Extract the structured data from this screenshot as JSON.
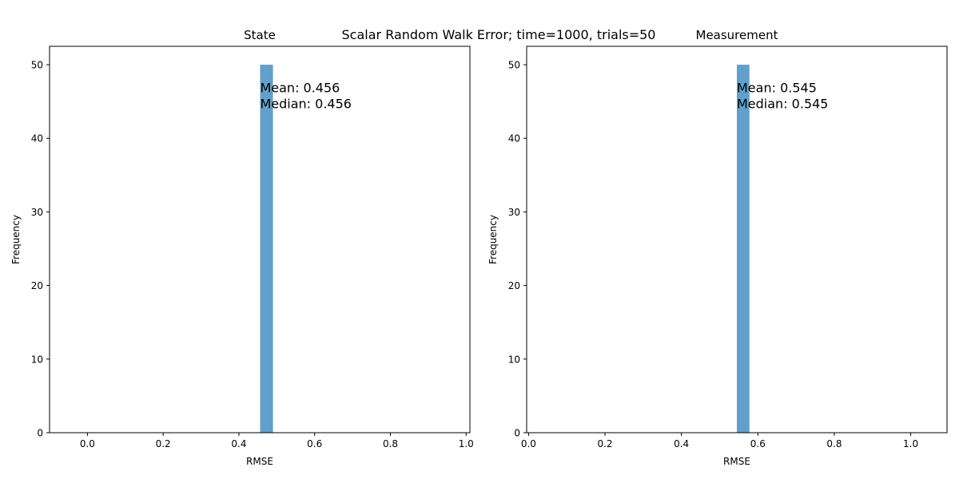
{
  "figure": {
    "suptitle": "Scalar Random Walk Error; time=1000, trials=50"
  },
  "colors": {
    "bar": "#1f77b4",
    "bar_alpha": 0.7,
    "axes": "#000000",
    "background": "#ffffff"
  },
  "chart_data": [
    {
      "type": "bar",
      "title": "State",
      "xlabel": "RMSE",
      "ylabel": "Frequency",
      "xlim": [
        -0.1,
        1.01
      ],
      "ylim": [
        0,
        52.5
      ],
      "xticks": [
        "0.0",
        "0.2",
        "0.4",
        "0.6",
        "0.8",
        "1.0"
      ],
      "xtick_values": [
        0.0,
        0.2,
        0.4,
        0.6,
        0.8,
        1.0
      ],
      "yticks": [
        "0",
        "10",
        "20",
        "30",
        "40",
        "50"
      ],
      "ytick_values": [
        0,
        10,
        20,
        30,
        40,
        50
      ],
      "bins": [
        {
          "start": 0.456,
          "end": 0.49,
          "count": 50
        }
      ],
      "grid": false,
      "annotation": {
        "mean_label": "Mean: 0.456",
        "median_label": "Median: 0.456",
        "anchor_x": 0.456,
        "anchor_y": 47
      }
    },
    {
      "type": "bar",
      "title": "Measurement",
      "xlabel": "RMSE",
      "ylabel": "Frequency",
      "xlim": [
        -0.005,
        1.095
      ],
      "ylim": [
        0,
        52.5
      ],
      "xticks": [
        "0.0",
        "0.2",
        "0.4",
        "0.6",
        "0.8",
        "1.0"
      ],
      "xtick_values": [
        0.0,
        0.2,
        0.4,
        0.6,
        0.8,
        1.0
      ],
      "yticks": [
        "0",
        "10",
        "20",
        "30",
        "40",
        "50"
      ],
      "ytick_values": [
        0,
        10,
        20,
        30,
        40,
        50
      ],
      "bins": [
        {
          "start": 0.545,
          "end": 0.578,
          "count": 50
        }
      ],
      "grid": false,
      "annotation": {
        "mean_label": "Mean: 0.545",
        "median_label": "Median: 0.545",
        "anchor_x": 0.545,
        "anchor_y": 47
      }
    }
  ]
}
